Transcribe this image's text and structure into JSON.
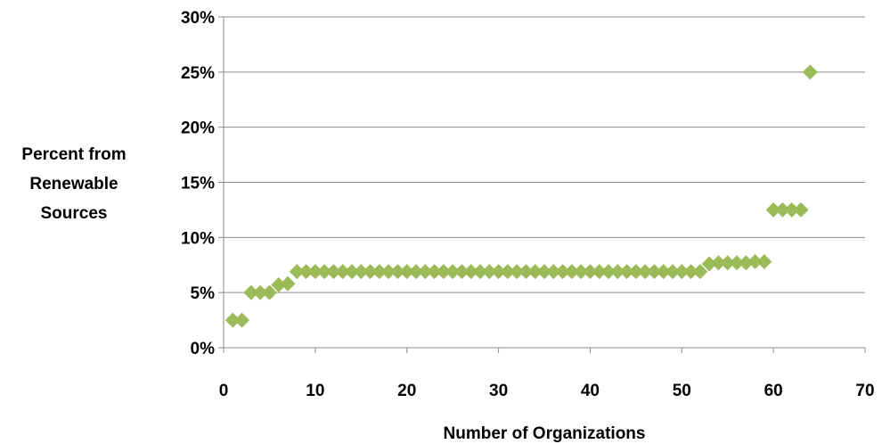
{
  "chart_data": {
    "type": "scatter",
    "title": "",
    "xlabel": "Number of Organizations",
    "ylabel": [
      "Percent from",
      "Renewable",
      "Sources"
    ],
    "xlim": [
      0,
      70
    ],
    "ylim": [
      0,
      30
    ],
    "xticks": [
      0,
      10,
      20,
      30,
      40,
      50,
      60,
      70
    ],
    "yticks": [
      0,
      5,
      10,
      15,
      20,
      25,
      30
    ],
    "xtick_labels": [
      "0",
      "10",
      "20",
      "30",
      "40",
      "50",
      "60",
      "70"
    ],
    "ytick_labels": [
      "0%",
      "5%",
      "10%",
      "15%",
      "20%",
      "25%",
      "30%"
    ],
    "y_unit": "%",
    "grid": "horizontal",
    "legend": "none",
    "marker": "diamond",
    "marker_color": "#9BBB59",
    "points": [
      {
        "x": 1,
        "y": 2.5
      },
      {
        "x": 2,
        "y": 2.5
      },
      {
        "x": 3,
        "y": 5.0
      },
      {
        "x": 4,
        "y": 5.0
      },
      {
        "x": 5,
        "y": 5.0
      },
      {
        "x": 6,
        "y": 5.7
      },
      {
        "x": 7,
        "y": 5.8
      },
      {
        "x": 8,
        "y": 6.9
      },
      {
        "x": 9,
        "y": 6.9
      },
      {
        "x": 10,
        "y": 6.9
      },
      {
        "x": 11,
        "y": 6.9
      },
      {
        "x": 12,
        "y": 6.9
      },
      {
        "x": 13,
        "y": 6.9
      },
      {
        "x": 14,
        "y": 6.9
      },
      {
        "x": 15,
        "y": 6.9
      },
      {
        "x": 16,
        "y": 6.9
      },
      {
        "x": 17,
        "y": 6.9
      },
      {
        "x": 18,
        "y": 6.9
      },
      {
        "x": 19,
        "y": 6.9
      },
      {
        "x": 20,
        "y": 6.9
      },
      {
        "x": 21,
        "y": 6.9
      },
      {
        "x": 22,
        "y": 6.9
      },
      {
        "x": 23,
        "y": 6.9
      },
      {
        "x": 24,
        "y": 6.9
      },
      {
        "x": 25,
        "y": 6.9
      },
      {
        "x": 26,
        "y": 6.9
      },
      {
        "x": 27,
        "y": 6.9
      },
      {
        "x": 28,
        "y": 6.9
      },
      {
        "x": 29,
        "y": 6.9
      },
      {
        "x": 30,
        "y": 6.9
      },
      {
        "x": 31,
        "y": 6.9
      },
      {
        "x": 32,
        "y": 6.9
      },
      {
        "x": 33,
        "y": 6.9
      },
      {
        "x": 34,
        "y": 6.9
      },
      {
        "x": 35,
        "y": 6.9
      },
      {
        "x": 36,
        "y": 6.9
      },
      {
        "x": 37,
        "y": 6.9
      },
      {
        "x": 38,
        "y": 6.9
      },
      {
        "x": 39,
        "y": 6.9
      },
      {
        "x": 40,
        "y": 6.9
      },
      {
        "x": 41,
        "y": 6.9
      },
      {
        "x": 42,
        "y": 6.9
      },
      {
        "x": 43,
        "y": 6.9
      },
      {
        "x": 44,
        "y": 6.9
      },
      {
        "x": 45,
        "y": 6.9
      },
      {
        "x": 46,
        "y": 6.9
      },
      {
        "x": 47,
        "y": 6.9
      },
      {
        "x": 48,
        "y": 6.9
      },
      {
        "x": 49,
        "y": 6.9
      },
      {
        "x": 50,
        "y": 6.9
      },
      {
        "x": 51,
        "y": 6.9
      },
      {
        "x": 52,
        "y": 6.9
      },
      {
        "x": 53,
        "y": 7.6
      },
      {
        "x": 54,
        "y": 7.7
      },
      {
        "x": 55,
        "y": 7.7
      },
      {
        "x": 56,
        "y": 7.7
      },
      {
        "x": 57,
        "y": 7.7
      },
      {
        "x": 58,
        "y": 7.8
      },
      {
        "x": 59,
        "y": 7.8
      },
      {
        "x": 60,
        "y": 12.5
      },
      {
        "x": 61,
        "y": 12.5
      },
      {
        "x": 62,
        "y": 12.5
      },
      {
        "x": 63,
        "y": 12.5
      },
      {
        "x": 64,
        "y": 25.0
      }
    ]
  }
}
